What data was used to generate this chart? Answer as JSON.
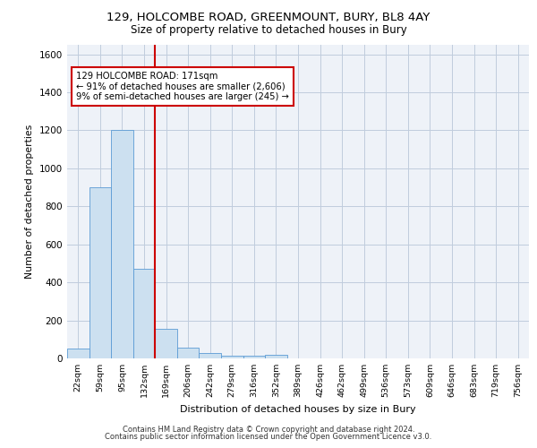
{
  "title_line1": "129, HOLCOMBE ROAD, GREENMOUNT, BURY, BL8 4AY",
  "title_line2": "Size of property relative to detached houses in Bury",
  "xlabel": "Distribution of detached houses by size in Bury",
  "ylabel": "Number of detached properties",
  "footer_line1": "Contains HM Land Registry data © Crown copyright and database right 2024.",
  "footer_line2": "Contains public sector information licensed under the Open Government Licence v3.0.",
  "bin_labels": [
    "22sqm",
    "59sqm",
    "95sqm",
    "132sqm",
    "169sqm",
    "206sqm",
    "242sqm",
    "279sqm",
    "316sqm",
    "352sqm",
    "389sqm",
    "426sqm",
    "462sqm",
    "499sqm",
    "536sqm",
    "573sqm",
    "609sqm",
    "646sqm",
    "683sqm",
    "719sqm",
    "756sqm"
  ],
  "bar_values": [
    50,
    900,
    1200,
    470,
    155,
    55,
    30,
    15,
    15,
    20,
    0,
    0,
    0,
    0,
    0,
    0,
    0,
    0,
    0,
    0,
    0
  ],
  "bar_color": "#cce0f0",
  "bar_edge_color": "#5b9bd5",
  "property_bin_index": 4,
  "red_line_color": "#cc0000",
  "annotation_text": "129 HOLCOMBE ROAD: 171sqm\n← 91% of detached houses are smaller (2,606)\n9% of semi-detached houses are larger (245) →",
  "annotation_box_color": "#cc0000",
  "ylim": [
    0,
    1650
  ],
  "yticks": [
    0,
    200,
    400,
    600,
    800,
    1000,
    1200,
    1400,
    1600
  ],
  "grid_color": "#c0ccdd",
  "background_color": "#eef2f8"
}
